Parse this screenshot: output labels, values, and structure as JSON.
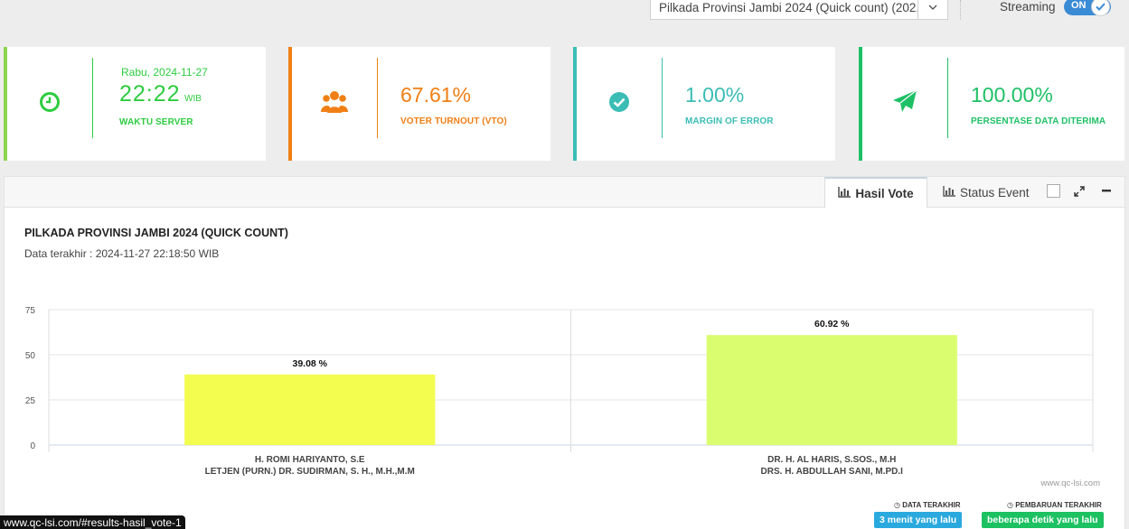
{
  "top": {
    "event_select": "Pilkada Provinsi Jambi 2024 (Quick count) (202...",
    "streaming_label": "Streaming",
    "streaming_state": "ON"
  },
  "cards": [
    {
      "top_text": "Rabu, 2024-11-27",
      "value": "22:22",
      "unit": "WIB",
      "label": "WAKTU SERVER",
      "color": "#2ecc40",
      "icon": "clock-icon"
    },
    {
      "value": "67.61%",
      "label": "VOTER TURNOUT (VTO)",
      "color": "#f07f15",
      "icon": "users-icon"
    },
    {
      "value": "1.00%",
      "label": "MARGIN OF ERROR",
      "color": "#3bbdb5",
      "icon": "check-circle-icon"
    },
    {
      "value": "100.00%",
      "label": "PERSENTASE DATA DITERIMA",
      "color": "#1ec066",
      "icon": "paper-plane-icon"
    }
  ],
  "panel": {
    "tabs": [
      "Hasil Vote",
      "Status Event"
    ],
    "title": "PILKADA PROVINSI JAMBI 2024 (QUICK COUNT)",
    "subtitle": "Data terakhir : 2024-11-27 22:18:50 WIB",
    "credit": "www.qc-lsi.com",
    "footer": {
      "last_data_label": "DATA TERAKHIR",
      "last_data_value": "3 menit yang lalu",
      "last_update_label": "PEMBARUAN TERAKHIR",
      "last_update_value": "beberapa detik yang lalu"
    }
  },
  "chart_data": {
    "type": "bar",
    "categories": [
      [
        "H. ROMI HARIYANTO, S.E",
        "LETJEN (PURN.) DR. SUDIRMAN, S. H., M.H.,M.M"
      ],
      [
        "DR. H. AL HARIS, S.SOS., M.H",
        "DRS. H. ABDULLAH SANI, M.PD.I"
      ]
    ],
    "values": [
      39.08,
      60.92
    ],
    "data_labels": [
      "39.08 %",
      "60.92 %"
    ],
    "colors": [
      "#f2fd4f",
      "#dafd6f"
    ],
    "yticks": [
      0,
      25,
      50,
      75
    ],
    "ylim": [
      0,
      75
    ]
  },
  "status_url": "www.qc-lsi.com/#results-hasil_vote-1"
}
